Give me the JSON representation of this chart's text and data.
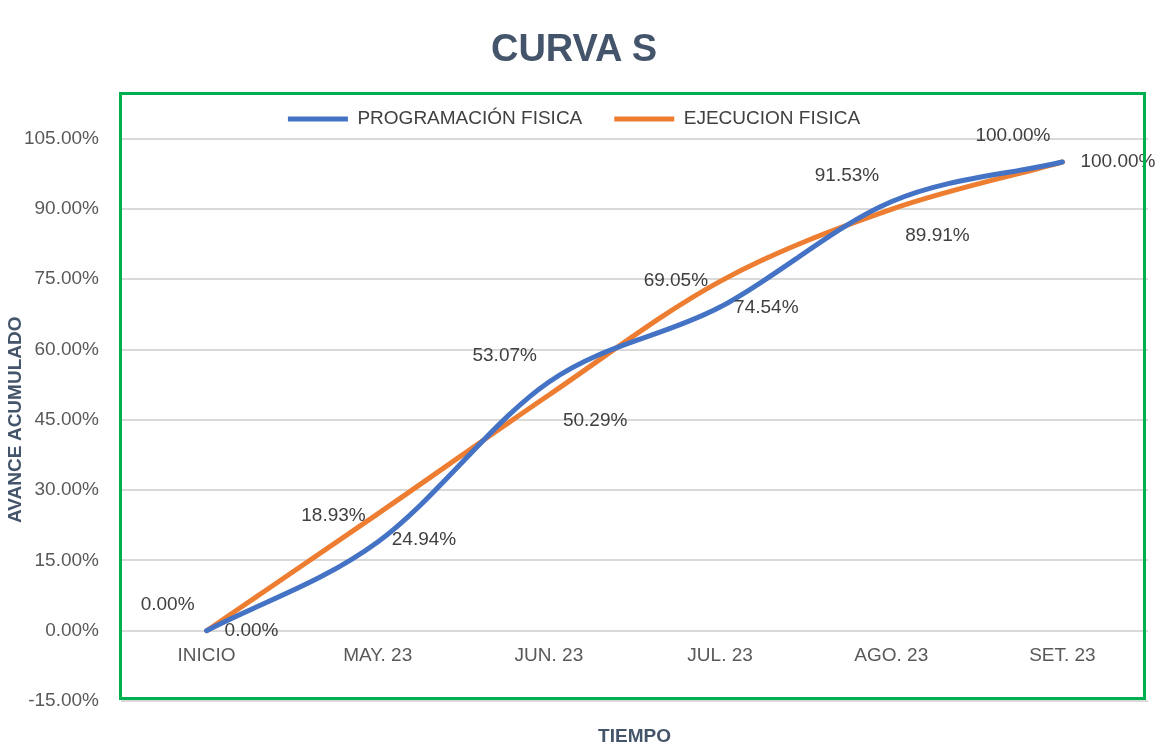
{
  "chart_data": {
    "type": "line",
    "title": "CURVA S",
    "xlabel": "TIEMPO",
    "ylabel": "AVANCE ACUMULADO",
    "categories": [
      "INICIO",
      "MAY. 23",
      "JUN. 23",
      "JUL. 23",
      "AGO. 23",
      "SET. 23"
    ],
    "series": [
      {
        "name": "PROGRAMACIÓN FISICA",
        "color": "#4472c4",
        "values": [
          0,
          18.93,
          53.07,
          69.05,
          91.53,
          100
        ],
        "value_labels": [
          "0.00%",
          "18.93%",
          "53.07%",
          "69.05%",
          "91.53%",
          "100.00%"
        ]
      },
      {
        "name": "EJECUCION FISICA",
        "color": "#ed7d31",
        "values": [
          0,
          24.94,
          50.29,
          74.54,
          89.91,
          100
        ],
        "value_labels": [
          "0.00%",
          "24.94%",
          "50.29%",
          "74.54%",
          "89.91%",
          "100.00%"
        ]
      }
    ],
    "ylim": [
      -15,
      105
    ],
    "yticks": [
      {
        "value": -15,
        "label": "-15.00%"
      },
      {
        "value": 0,
        "label": "0.00%"
      },
      {
        "value": 15,
        "label": "15.00%"
      },
      {
        "value": 30,
        "label": "30.00%"
      },
      {
        "value": 45,
        "label": "45.00%"
      },
      {
        "value": 60,
        "label": "60.00%"
      },
      {
        "value": 75,
        "label": "75.00%"
      },
      {
        "value": 90,
        "label": "90.00%"
      },
      {
        "value": 105,
        "label": "105.00%"
      }
    ],
    "grid": "y",
    "legend": "top",
    "marker": "none",
    "line_style": "solid"
  }
}
